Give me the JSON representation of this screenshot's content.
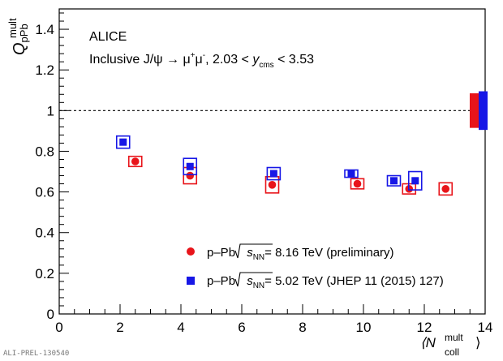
{
  "chart_data": {
    "type": "scatter",
    "xlim": [
      0,
      14
    ],
    "ylim": [
      0,
      1.5
    ],
    "xticks": [
      0,
      2,
      4,
      6,
      8,
      10,
      12,
      14
    ],
    "yticks": [
      0,
      0.2,
      0.4,
      0.6,
      0.8,
      1,
      1.2,
      1.4
    ],
    "ytick_labels": [
      "0",
      "0.2",
      "0.4",
      "0.6",
      "0.8",
      "1",
      "1.2",
      "1.4"
    ],
    "xlabel": {
      "main": "⟨N",
      "sup": "mult",
      "sub": "coll",
      "close": "⟩"
    },
    "ylabel": {
      "main": "Q",
      "sup": "mult",
      "sub": "pPb"
    },
    "reference_line": {
      "y": 1,
      "style": "dashed"
    },
    "experiment": "ALICE",
    "description": {
      "pre": "Inclusive J/ψ → μ",
      "sup1": "+",
      "mid": "μ",
      "sup2": "-",
      "post1": ", 2.03 < ",
      "var": "y",
      "sub": "cms",
      "post2": " < 3.53"
    },
    "series": [
      {
        "name": "p–Pb √sNN = 8.16 TeV (preliminary)",
        "legend": {
          "pre": "p–Pb ",
          "root": "s",
          "sub": "NN",
          "post": "= 8.16 TeV (preliminary)"
        },
        "color": "#e8141a",
        "marker": "circle",
        "points": [
          {
            "x": 2.5,
            "y": 0.75,
            "sys": 0.025
          },
          {
            "x": 4.3,
            "y": 0.68,
            "sys": 0.04
          },
          {
            "x": 7.0,
            "y": 0.635,
            "sys": 0.04
          },
          {
            "x": 9.8,
            "y": 0.64,
            "sys": 0.025
          },
          {
            "x": 11.5,
            "y": 0.615,
            "sys": 0.025
          },
          {
            "x": 12.7,
            "y": 0.615,
            "sys": 0.03
          }
        ],
        "global_uncertainty": 0.085
      },
      {
        "name": "p–Pb √sNN = 5.02 TeV (JHEP 11 (2015) 127)",
        "legend": {
          "pre": "p–Pb ",
          "root": "s",
          "sub": "NN",
          "post": "= 5.02 TeV (JHEP 11 (2015) 127)"
        },
        "color": "#1717e6",
        "marker": "square",
        "points": [
          {
            "x": 2.1,
            "y": 0.845,
            "sys": 0.03
          },
          {
            "x": 4.3,
            "y": 0.725,
            "sys": 0.04
          },
          {
            "x": 7.05,
            "y": 0.69,
            "sys": 0.03
          },
          {
            "x": 9.6,
            "y": 0.69,
            "sys": 0.018
          },
          {
            "x": 11.0,
            "y": 0.655,
            "sys": 0.025
          },
          {
            "x": 11.7,
            "y": 0.655,
            "sys": 0.045
          }
        ],
        "global_uncertainty": 0.095
      }
    ]
  },
  "footer": {
    "label": "ALI-PREL-130540"
  }
}
